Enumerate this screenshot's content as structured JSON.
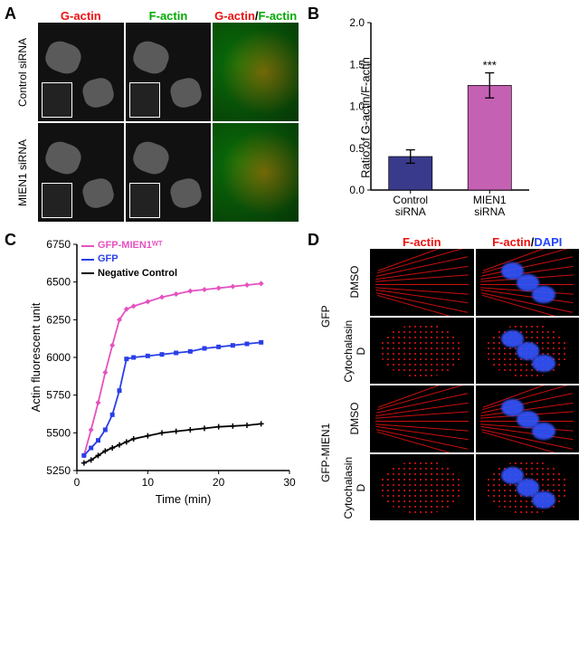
{
  "panelA": {
    "label": "A",
    "columns": [
      {
        "text": "G-actin",
        "color": "#e11"
      },
      {
        "text": "F-actin",
        "color": "#0a0"
      },
      {
        "text_parts": [
          {
            "t": "G-actin",
            "c": "#e11"
          },
          {
            "t": "/",
            "c": "#000"
          },
          {
            "t": "F-actin",
            "c": "#0a0"
          }
        ]
      }
    ],
    "rows": [
      "Control siRNA",
      "MIEN1 siRNA"
    ]
  },
  "panelB": {
    "label": "B",
    "type": "bar",
    "ylabel": "Ratio of G-actin/F-actin",
    "ylim": [
      0,
      2.0
    ],
    "yticks": [
      0,
      0.5,
      1.0,
      1.5,
      2.0
    ],
    "categories": [
      "Control\nsiRNA",
      "MIEN1\nsiRNA"
    ],
    "values": [
      0.4,
      1.25
    ],
    "errors": [
      0.08,
      0.15
    ],
    "bar_colors": [
      "#3a3a8c",
      "#c561b3"
    ],
    "sig_label": "***",
    "axis_color": "#000",
    "label_fontsize": 12,
    "bar_width": 0.55
  },
  "panelC": {
    "label": "C",
    "type": "line",
    "xlabel": "Time (min)",
    "ylabel": "Actin fluorescent unit",
    "xlim": [
      0,
      30
    ],
    "xticks": [
      0,
      10,
      20,
      30
    ],
    "ylim": [
      5250,
      6750
    ],
    "yticks": [
      5250,
      5500,
      5750,
      6000,
      6250,
      6500,
      6750
    ],
    "series": [
      {
        "name": "GFP-MIEN1ᵂᵀ",
        "color": "#e552c0",
        "marker": "diamond",
        "x": [
          1,
          2,
          3,
          4,
          5,
          6,
          7,
          8,
          10,
          12,
          14,
          16,
          18,
          20,
          22,
          24,
          26
        ],
        "y": [
          5350,
          5520,
          5700,
          5900,
          6080,
          6250,
          6320,
          6340,
          6370,
          6400,
          6420,
          6440,
          6450,
          6460,
          6470,
          6480,
          6490
        ]
      },
      {
        "name": "GFP",
        "color": "#2a3ee8",
        "marker": "square",
        "x": [
          1,
          2,
          3,
          4,
          5,
          6,
          7,
          8,
          10,
          12,
          14,
          16,
          18,
          20,
          22,
          24,
          26
        ],
        "y": [
          5350,
          5400,
          5450,
          5520,
          5620,
          5780,
          5990,
          6000,
          6010,
          6020,
          6030,
          6040,
          6060,
          6070,
          6080,
          6090,
          6100
        ]
      },
      {
        "name": "Negative Control",
        "color": "#000000",
        "marker": "cross",
        "x": [
          1,
          2,
          3,
          4,
          5,
          6,
          7,
          8,
          10,
          12,
          14,
          16,
          18,
          20,
          22,
          24,
          26
        ],
        "y": [
          5300,
          5320,
          5350,
          5380,
          5400,
          5420,
          5440,
          5460,
          5480,
          5500,
          5510,
          5520,
          5530,
          5540,
          5545,
          5550,
          5560
        ]
      }
    ],
    "axis_color": "#000",
    "label_fontsize": 13
  },
  "panelD": {
    "label": "D",
    "columns": [
      {
        "text": "F-actin",
        "color": "#e11"
      },
      {
        "text_parts": [
          {
            "t": "F-actin",
            "c": "#e11"
          },
          {
            "t": "/",
            "c": "#000"
          },
          {
            "t": "DAPI",
            "c": "#2244ff"
          }
        ]
      }
    ],
    "outer_rows": [
      "GFP",
      "GFP-MIEN1"
    ],
    "inner_rows": [
      "DMSO",
      "Cytochalasin D"
    ],
    "factin_color": "#e11",
    "dapi_color": "#3355ff"
  }
}
